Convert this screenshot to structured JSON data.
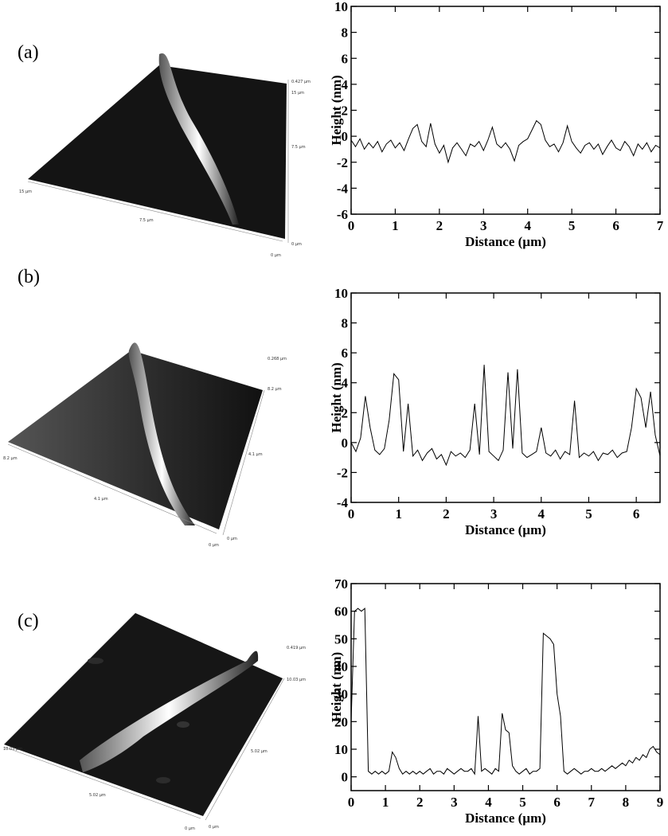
{
  "panels": [
    {
      "label": "(a)",
      "afm_labels": [
        "0.427 µm",
        "15 µm",
        "7.5 µm",
        "0 µm",
        "15 µm",
        "7.5 µm",
        "0 µm"
      ]
    },
    {
      "label": "(b)",
      "afm_labels": [
        "0.268 µm",
        "8.2 µm",
        "4.1 µm",
        "0 µm",
        "8.2 µm",
        "4.1 µm",
        "0 µm"
      ]
    },
    {
      "label": "(c)",
      "afm_labels": [
        "0.419 µm",
        "10.03 µm",
        "5.02 µm",
        "0 µm",
        "10.03 µm",
        "5.02 µm",
        "0 µm"
      ]
    }
  ],
  "chart_data": [
    {
      "type": "line",
      "xlabel": "Distance (µm)",
      "ylabel": "Height (nm)",
      "color": "#000000",
      "xlim": [
        0,
        7
      ],
      "ylim": [
        -6,
        10
      ],
      "xticks": [
        0,
        1,
        2,
        3,
        4,
        5,
        6,
        7
      ],
      "yticks": [
        -6,
        -4,
        -2,
        0,
        2,
        4,
        6,
        8,
        10
      ],
      "x": [
        0,
        0.1,
        0.2,
        0.3,
        0.4,
        0.5,
        0.6,
        0.7,
        0.8,
        0.9,
        1,
        1.1,
        1.2,
        1.3,
        1.4,
        1.5,
        1.6,
        1.7,
        1.8,
        1.9,
        2,
        2.1,
        2.2,
        2.3,
        2.4,
        2.5,
        2.6,
        2.7,
        2.8,
        2.9,
        3,
        3.1,
        3.2,
        3.3,
        3.4,
        3.5,
        3.6,
        3.7,
        3.8,
        3.9,
        4,
        4.1,
        4.2,
        4.3,
        4.4,
        4.5,
        4.6,
        4.7,
        4.8,
        4.9,
        5,
        5.1,
        5.2,
        5.3,
        5.4,
        5.5,
        5.6,
        5.7,
        5.8,
        5.9,
        6,
        6.1,
        6.2,
        6.3,
        6.4,
        6.5,
        6.6,
        6.7,
        6.8,
        6.9,
        7
      ],
      "values": [
        -0.3,
        -0.8,
        -0.2,
        -1.0,
        -0.5,
        -0.9,
        -0.4,
        -1.2,
        -0.6,
        -0.3,
        -0.9,
        -0.5,
        -1.1,
        -0.2,
        0.6,
        0.9,
        -0.4,
        -0.8,
        1.0,
        -0.6,
        -1.3,
        -0.7,
        -2.0,
        -0.9,
        -0.5,
        -1.0,
        -1.5,
        -0.6,
        -0.8,
        -0.4,
        -1.1,
        -0.3,
        0.7,
        -0.6,
        -0.9,
        -0.5,
        -1.0,
        -1.9,
        -0.7,
        -0.4,
        -0.2,
        0.5,
        1.2,
        0.9,
        -0.3,
        -0.8,
        -0.6,
        -1.2,
        -0.5,
        0.8,
        -0.4,
        -0.9,
        -1.3,
        -0.7,
        -0.5,
        -1.0,
        -0.6,
        -1.4,
        -0.8,
        -0.3,
        -0.9,
        -1.1,
        -0.4,
        -0.8,
        -1.5,
        -0.6,
        -1.0,
        -0.5,
        -1.2,
        -0.7,
        -0.9
      ]
    },
    {
      "type": "line",
      "xlabel": "Distance (µm)",
      "ylabel": "Height (nm)",
      "color": "#000000",
      "xlim": [
        0,
        6.5
      ],
      "ylim": [
        -4,
        10
      ],
      "xticks": [
        0,
        1,
        2,
        3,
        4,
        5,
        6
      ],
      "yticks": [
        -4,
        -2,
        0,
        2,
        4,
        6,
        8,
        10
      ],
      "x": [
        0,
        0.1,
        0.2,
        0.3,
        0.4,
        0.5,
        0.6,
        0.7,
        0.8,
        0.9,
        1,
        1.1,
        1.2,
        1.3,
        1.4,
        1.5,
        1.6,
        1.7,
        1.8,
        1.9,
        2,
        2.1,
        2.2,
        2.3,
        2.4,
        2.5,
        2.6,
        2.7,
        2.8,
        2.9,
        3,
        3.1,
        3.2,
        3.3,
        3.4,
        3.5,
        3.6,
        3.7,
        3.8,
        3.9,
        4,
        4.1,
        4.2,
        4.3,
        4.4,
        4.5,
        4.6,
        4.7,
        4.8,
        4.9,
        5,
        5.1,
        5.2,
        5.3,
        5.4,
        5.5,
        5.6,
        5.7,
        5.8,
        5.9,
        6,
        6.1,
        6.2,
        6.3,
        6.4,
        6.5
      ],
      "values": [
        0.0,
        -0.6,
        0.3,
        3.1,
        1.0,
        -0.5,
        -0.8,
        -0.4,
        1.5,
        4.6,
        4.2,
        -0.6,
        2.6,
        -0.9,
        -0.5,
        -1.2,
        -0.7,
        -0.4,
        -1.1,
        -0.8,
        -1.5,
        -0.6,
        -0.9,
        -0.7,
        -1.0,
        -0.5,
        2.6,
        -0.8,
        5.2,
        -0.6,
        -0.9,
        -1.2,
        -0.5,
        4.7,
        -0.4,
        4.9,
        -0.7,
        -1.0,
        -0.8,
        -0.6,
        1.0,
        -0.7,
        -0.9,
        -0.5,
        -1.1,
        -0.6,
        -0.8,
        2.8,
        -1.0,
        -0.7,
        -0.9,
        -0.6,
        -1.2,
        -0.7,
        -0.8,
        -0.5,
        -1.0,
        -0.7,
        -0.6,
        1.0,
        3.6,
        3.0,
        1.0,
        3.4,
        0.5,
        -0.9
      ]
    },
    {
      "type": "line",
      "xlabel": "Distance (µm)",
      "ylabel": "Height (nm)",
      "color": "#000000",
      "xlim": [
        0,
        9
      ],
      "ylim": [
        -5,
        70
      ],
      "xticks": [
        0,
        1,
        2,
        3,
        4,
        5,
        6,
        7,
        8,
        9
      ],
      "yticks": [
        0,
        10,
        20,
        30,
        40,
        50,
        60,
        70
      ],
      "x": [
        0,
        0.1,
        0.2,
        0.3,
        0.4,
        0.5,
        0.6,
        0.7,
        0.8,
        0.9,
        1,
        1.1,
        1.2,
        1.3,
        1.4,
        1.5,
        1.6,
        1.7,
        1.8,
        1.9,
        2,
        2.1,
        2.2,
        2.3,
        2.4,
        2.5,
        2.6,
        2.7,
        2.8,
        2.9,
        3,
        3.1,
        3.2,
        3.3,
        3.4,
        3.5,
        3.6,
        3.7,
        3.8,
        3.9,
        4,
        4.1,
        4.2,
        4.3,
        4.4,
        4.5,
        4.6,
        4.7,
        4.8,
        4.9,
        5,
        5.1,
        5.2,
        5.3,
        5.4,
        5.5,
        5.6,
        5.7,
        5.8,
        5.9,
        6,
        6.1,
        6.2,
        6.3,
        6.4,
        6.5,
        6.6,
        6.7,
        6.8,
        6.9,
        7,
        7.1,
        7.2,
        7.3,
        7.4,
        7.5,
        7.6,
        7.7,
        7.8,
        7.9,
        8,
        8.1,
        8.2,
        8.3,
        8.4,
        8.5,
        8.6,
        8.7,
        8.8,
        8.9,
        9
      ],
      "values": [
        20,
        60,
        61,
        60,
        61,
        2,
        1,
        2,
        1,
        2,
        1,
        2,
        9,
        7,
        3,
        1,
        2,
        1,
        2,
        1,
        2,
        1,
        2,
        3,
        1,
        2,
        2,
        1,
        3,
        2,
        1,
        2,
        3,
        2,
        2,
        3,
        1,
        22,
        2,
        3,
        2,
        1,
        3,
        2,
        23,
        17,
        16,
        4,
        2,
        1,
        2,
        3,
        1,
        2,
        2,
        3,
        52,
        51,
        50,
        48,
        30,
        22,
        2,
        1,
        2,
        3,
        2,
        1,
        2,
        2,
        3,
        2,
        2,
        3,
        2,
        3,
        4,
        3,
        4,
        5,
        4,
        6,
        5,
        7,
        6,
        8,
        7,
        10,
        11,
        9,
        8
      ]
    }
  ]
}
